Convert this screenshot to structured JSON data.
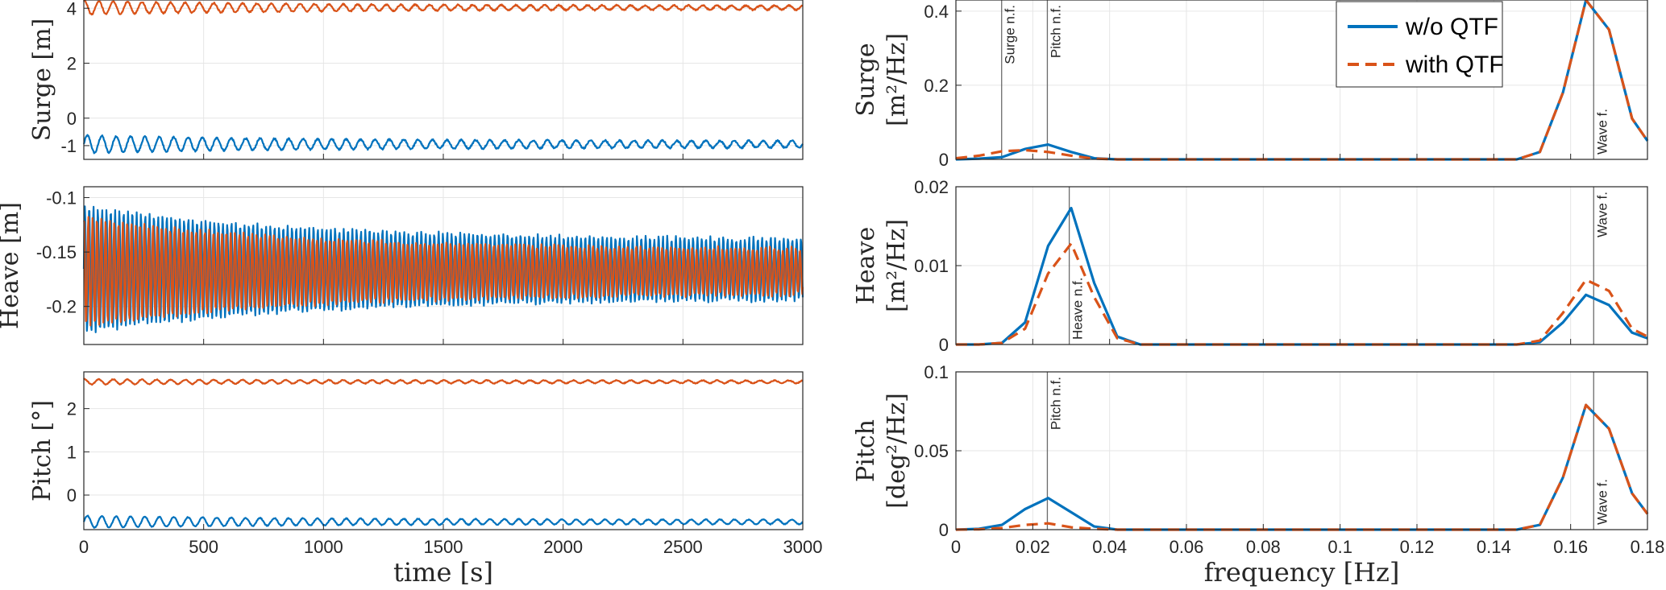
{
  "colors": {
    "series_a": "#0072BD",
    "series_b": "#D95319",
    "grid": "#E6E6E6",
    "axis": "#262626"
  },
  "legend": {
    "placement": "top-right of top-right panel",
    "entries": [
      "w/o QTF",
      "with QTF"
    ]
  },
  "chart_data": [
    {
      "id": "surge_time",
      "type": "line",
      "ylabel": "Surge [m]",
      "xlabel": "",
      "xlim": [
        0,
        3000
      ],
      "ylim": [
        -1.5,
        4.3
      ],
      "xticks": [
        0,
        500,
        1000,
        1500,
        2000,
        2500,
        3000
      ],
      "yticks": [
        -1,
        0,
        2,
        4
      ],
      "ytick_labels": [
        "-1",
        "0",
        "2",
        "4"
      ],
      "series": [
        {
          "name": "w/o QTF",
          "mean": -0.95,
          "amp0": 0.32,
          "amp_end": 0.12,
          "period": 60,
          "noise": 0.06
        },
        {
          "name": "with QTF",
          "mean": 4.02,
          "amp0": 0.25,
          "amp_end": 0.07,
          "period": 60,
          "noise": 0.05
        }
      ]
    },
    {
      "id": "heave_time",
      "type": "line",
      "ylabel": "Heave [m]",
      "xlabel": "",
      "xlim": [
        0,
        3000
      ],
      "ylim": [
        -0.235,
        -0.09
      ],
      "xticks": [
        0,
        500,
        1000,
        1500,
        2000,
        2500,
        3000
      ],
      "yticks": [
        -0.2,
        -0.15,
        -0.1
      ],
      "ytick_labels": [
        "-0.2",
        "-0.15",
        "-0.1"
      ],
      "series": [
        {
          "name": "w/o QTF",
          "mean": -0.166,
          "amp0": 0.058,
          "amp_end": 0.027,
          "period": 18,
          "noise": 0.004
        },
        {
          "name": "with QTF",
          "mean": -0.168,
          "amp0": 0.05,
          "amp_end": 0.02,
          "period": 18,
          "noise": 0.004
        }
      ]
    },
    {
      "id": "pitch_time",
      "type": "line",
      "ylabel": "Pitch [°]",
      "xlabel": "time [s]",
      "xlim": [
        0,
        3000
      ],
      "ylim": [
        -0.8,
        2.85
      ],
      "xticks": [
        0,
        500,
        1000,
        1500,
        2000,
        2500,
        3000
      ],
      "xtick_labels": [
        "0",
        "500",
        "1000",
        "1500",
        "2000",
        "2500",
        "3000"
      ],
      "yticks": [
        0,
        1,
        2
      ],
      "ytick_labels": [
        "0",
        "1",
        "2"
      ],
      "series": [
        {
          "name": "w/o QTF",
          "mean": -0.62,
          "amp0": 0.14,
          "amp_end": 0.05,
          "period": 60,
          "noise": 0.02
        },
        {
          "name": "with QTF",
          "mean": 2.62,
          "amp0": 0.06,
          "amp_end": 0.03,
          "period": 60,
          "noise": 0.02
        }
      ]
    },
    {
      "id": "surge_psd",
      "type": "line",
      "ylabel_line1": "Surge",
      "ylabel_line2": "[m²/Hz]",
      "xlabel": "",
      "xlim": [
        0,
        0.18
      ],
      "ylim": [
        0,
        0.43
      ],
      "xticks": [
        0,
        0.02,
        0.04,
        0.06,
        0.08,
        0.1,
        0.12,
        0.14,
        0.16,
        0.18
      ],
      "yticks": [
        0,
        0.2,
        0.4
      ],
      "ytick_labels": [
        "0",
        "0.2",
        "0.4"
      ],
      "vlines": [
        {
          "x": 0.0119,
          "label": "Surge n.f.",
          "label_pos": "top"
        },
        {
          "x": 0.0238,
          "label": "Pitch n.f.",
          "label_pos": "top"
        },
        {
          "x": 0.166,
          "label": "Wave f.",
          "label_pos": "bottom"
        }
      ],
      "x": [
        0,
        0.006,
        0.012,
        0.018,
        0.024,
        0.03,
        0.036,
        0.042,
        0.06,
        0.1,
        0.146,
        0.152,
        0.158,
        0.164,
        0.17,
        0.176,
        0.18
      ],
      "series": [
        {
          "name": "w/o QTF",
          "values": [
            0,
            0.002,
            0.006,
            0.028,
            0.04,
            0.02,
            0.003,
            0,
            0,
            0,
            0,
            0.02,
            0.18,
            0.43,
            0.35,
            0.11,
            0.05
          ]
        },
        {
          "name": "with QTF",
          "values": [
            0.003,
            0.01,
            0.022,
            0.025,
            0.02,
            0.01,
            0.002,
            0,
            0,
            0,
            0,
            0.02,
            0.18,
            0.43,
            0.35,
            0.11,
            0.05
          ]
        }
      ]
    },
    {
      "id": "heave_psd",
      "type": "line",
      "ylabel_line1": "Heave",
      "ylabel_line2": "[m²/Hz]",
      "xlabel": "",
      "xlim": [
        0,
        0.18
      ],
      "ylim": [
        0,
        0.02
      ],
      "xticks": [
        0,
        0.02,
        0.04,
        0.06,
        0.08,
        0.1,
        0.12,
        0.14,
        0.16,
        0.18
      ],
      "yticks": [
        0,
        0.01,
        0.02
      ],
      "ytick_labels": [
        "0",
        "0.01",
        "0.02"
      ],
      "vlines": [
        {
          "x": 0.0295,
          "label": "Heave n.f.",
          "label_pos": "bottom"
        },
        {
          "x": 0.166,
          "label": "Wave f.",
          "label_pos": "top"
        }
      ],
      "x": [
        0,
        0.006,
        0.012,
        0.018,
        0.024,
        0.03,
        0.036,
        0.042,
        0.048,
        0.06,
        0.1,
        0.146,
        0.152,
        0.158,
        0.164,
        0.17,
        0.176,
        0.18
      ],
      "series": [
        {
          "name": "w/o QTF",
          "values": [
            0,
            0,
            0.0002,
            0.0028,
            0.0125,
            0.0173,
            0.0078,
            0.001,
            0,
            0,
            0,
            0,
            0.0003,
            0.0028,
            0.0063,
            0.005,
            0.0015,
            0.0008
          ]
        },
        {
          "name": "with QTF",
          "values": [
            0,
            0,
            0.0002,
            0.002,
            0.009,
            0.0128,
            0.006,
            0.0008,
            0,
            0,
            0,
            0,
            0.0005,
            0.004,
            0.0082,
            0.0068,
            0.002,
            0.001
          ]
        }
      ]
    },
    {
      "id": "pitch_psd",
      "type": "line",
      "ylabel_line1": "Pitch",
      "ylabel_line2": "[deg²/Hz]",
      "xlabel": "frequency [Hz]",
      "xlim": [
        0,
        0.18
      ],
      "ylim": [
        0,
        0.1
      ],
      "xticks": [
        0,
        0.02,
        0.04,
        0.06,
        0.08,
        0.1,
        0.12,
        0.14,
        0.16,
        0.18
      ],
      "xtick_labels": [
        "0",
        "0.02",
        "0.04",
        "0.06",
        "0.08",
        "0.1",
        "0.12",
        "0.14",
        "0.16",
        "0.18"
      ],
      "yticks": [
        0,
        0.05,
        0.1
      ],
      "ytick_labels": [
        "0",
        "0.05",
        "0.1"
      ],
      "vlines": [
        {
          "x": 0.0238,
          "label": "Pitch n.f.",
          "label_pos": "top"
        },
        {
          "x": 0.166,
          "label": "Wave f.",
          "label_pos": "bottom"
        }
      ],
      "x": [
        0,
        0.006,
        0.012,
        0.018,
        0.024,
        0.03,
        0.036,
        0.042,
        0.06,
        0.1,
        0.146,
        0.152,
        0.158,
        0.164,
        0.17,
        0.176,
        0.18
      ],
      "series": [
        {
          "name": "w/o QTF",
          "values": [
            0,
            0.0005,
            0.003,
            0.013,
            0.02,
            0.011,
            0.002,
            0,
            0,
            0,
            0,
            0.003,
            0.033,
            0.079,
            0.064,
            0.023,
            0.01
          ]
        },
        {
          "name": "with QTF",
          "values": [
            0,
            0.0002,
            0.001,
            0.003,
            0.004,
            0.0015,
            0.0005,
            0,
            0,
            0,
            0,
            0.003,
            0.033,
            0.079,
            0.064,
            0.023,
            0.01
          ]
        }
      ]
    }
  ]
}
